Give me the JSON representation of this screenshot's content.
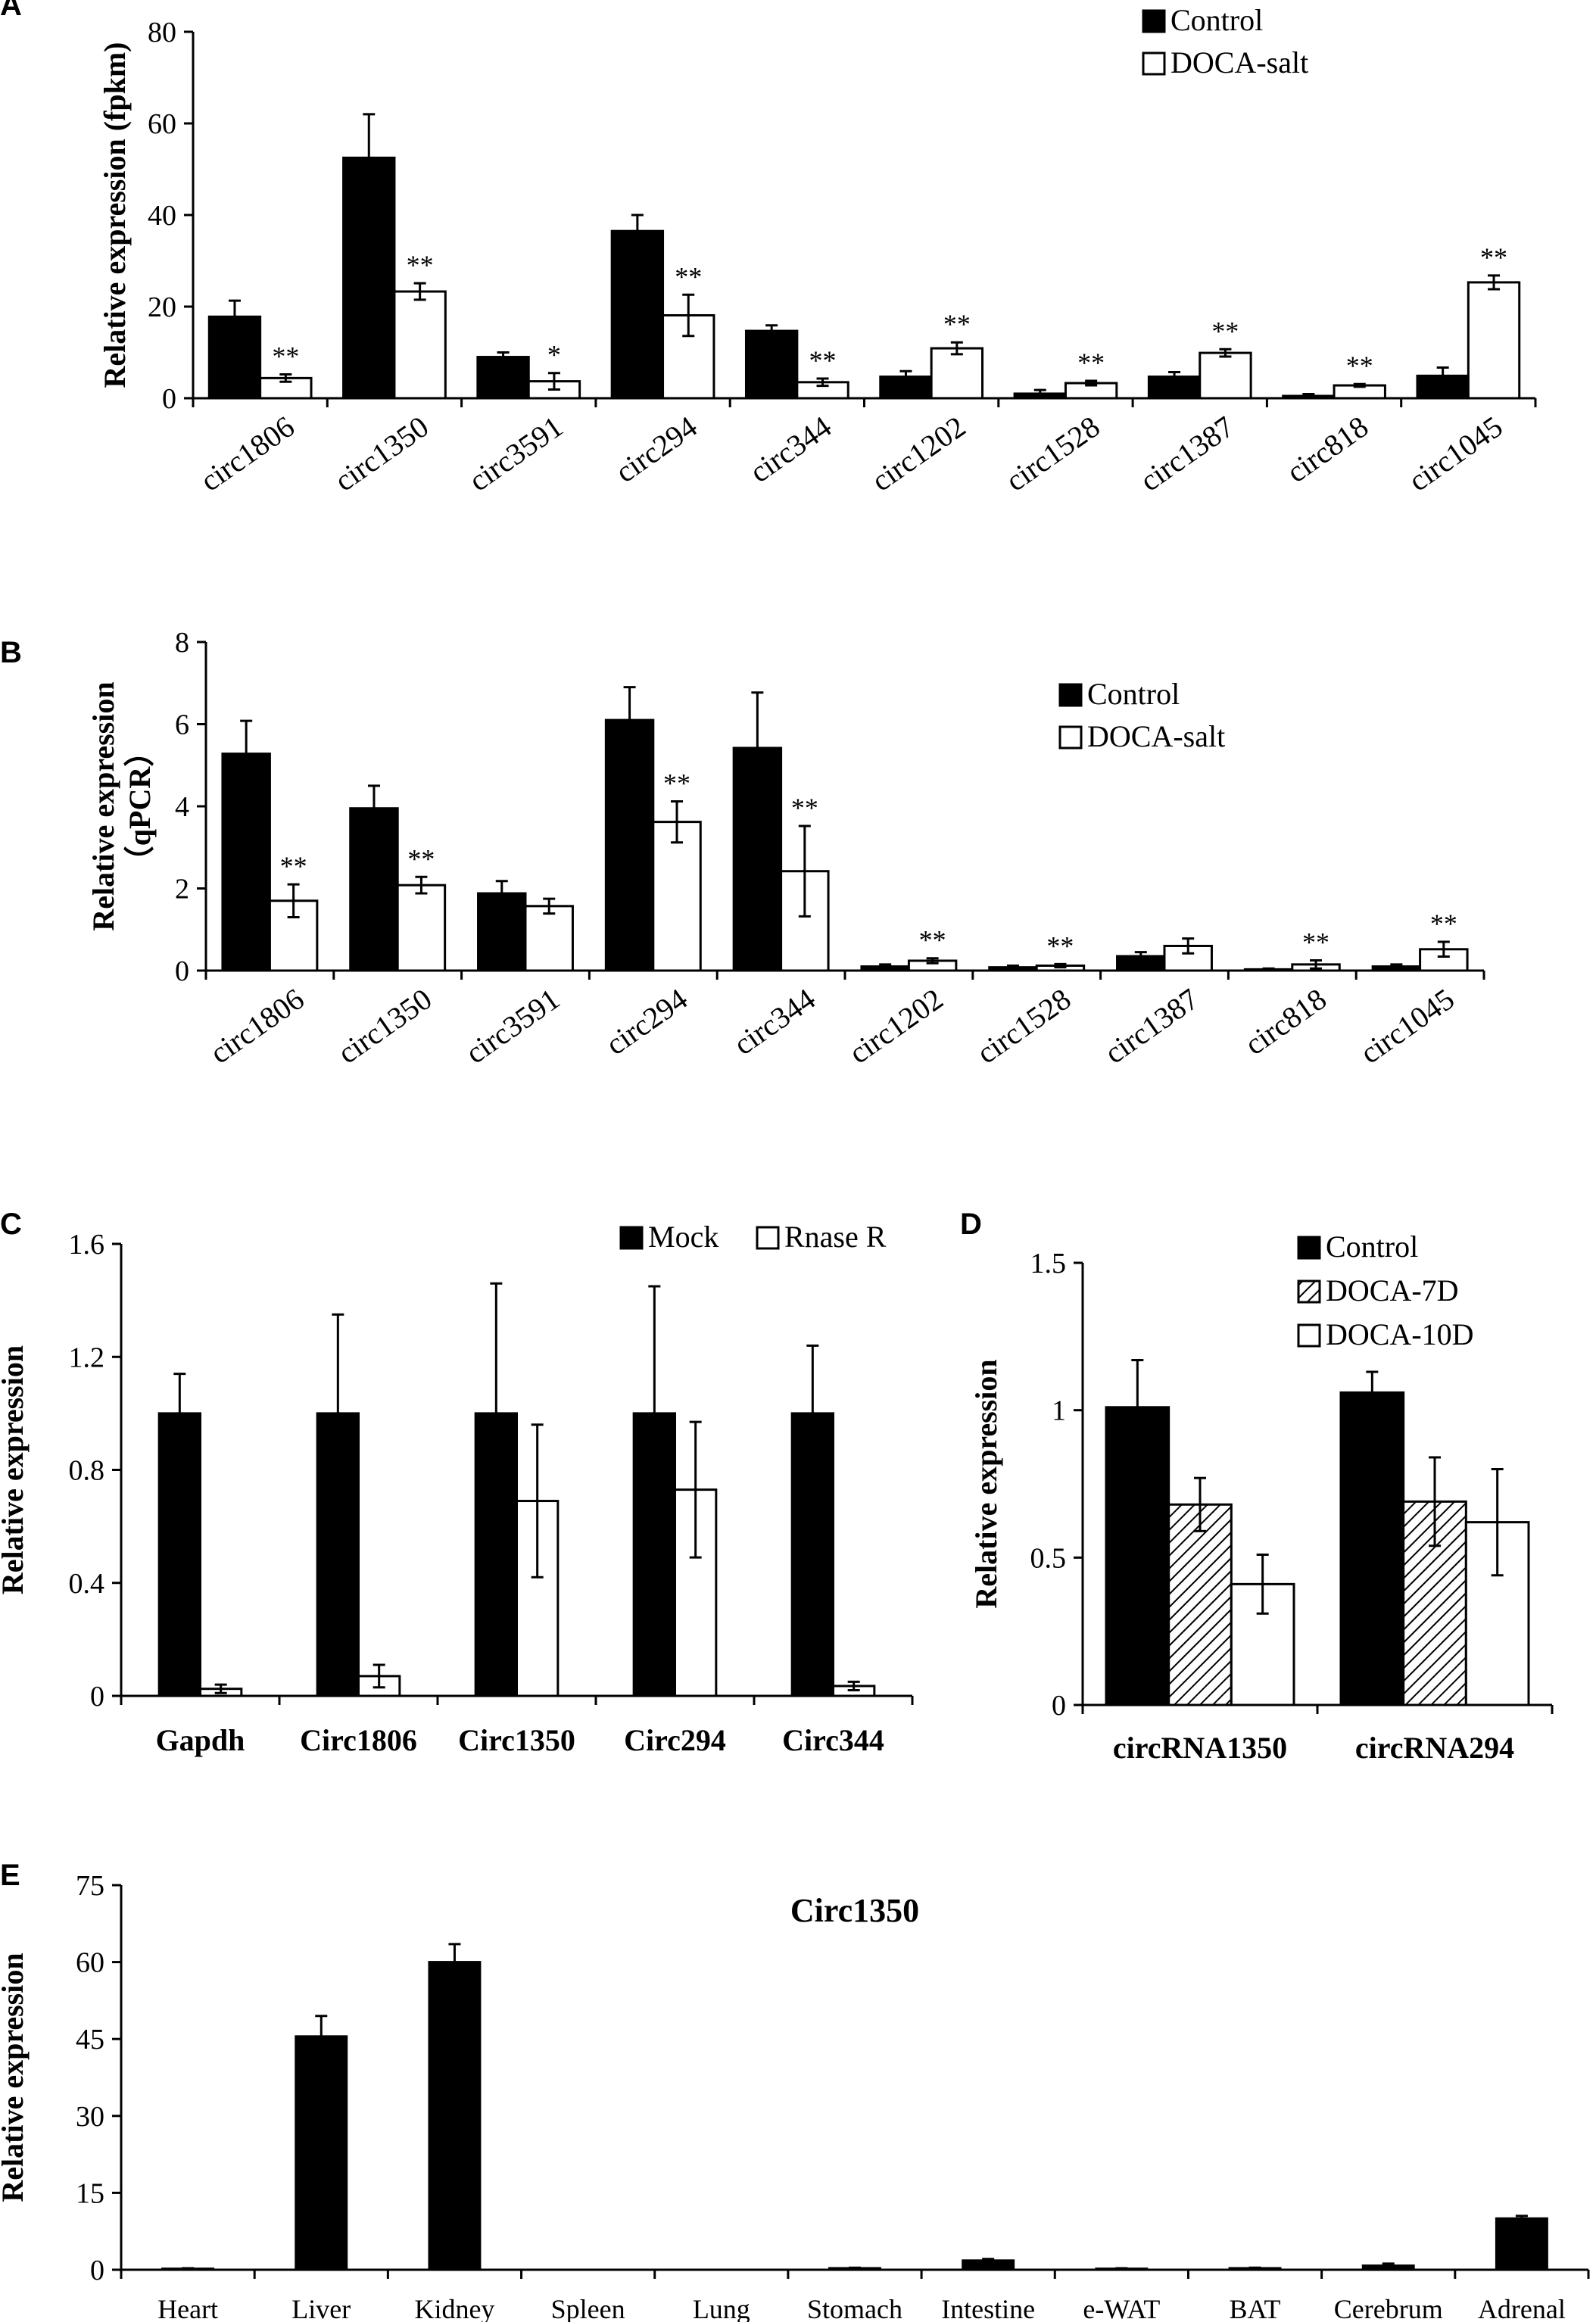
{
  "chart_data": [
    {
      "panel": "A",
      "type": "bar",
      "ylabel": "Relative expression (fpkm)",
      "ylim": [
        0,
        80
      ],
      "yticks": [
        "0",
        "20",
        "40",
        "60",
        "80"
      ],
      "categories": [
        "circ1806",
        "circ1350",
        "circ3591",
        "circ294",
        "circ344",
        "circ1202",
        "circ1528",
        "circ1387",
        "circ818",
        "circ1045"
      ],
      "series": [
        {
          "name": "Control",
          "fill": "black",
          "values": [
            17.8,
            52.5,
            9.0,
            36.5,
            14.7,
            4.7,
            1.0,
            4.7,
            0.5,
            4.9
          ],
          "errors": [
            3.5,
            9.5,
            1.0,
            3.5,
            1.2,
            1.2,
            0.8,
            1.0,
            0.4,
            1.8
          ]
        },
        {
          "name": "DOCA-salt",
          "fill": "white",
          "values": [
            4.4,
            23.3,
            3.7,
            18.1,
            3.5,
            10.9,
            3.3,
            9.9,
            2.8,
            25.3
          ],
          "errors": [
            0.8,
            1.8,
            1.8,
            4.5,
            0.8,
            1.3,
            0.5,
            0.8,
            0.3,
            1.5
          ]
        }
      ],
      "significance": [
        "**",
        "**",
        "*",
        "**",
        "**",
        "**",
        "**",
        "**",
        "**",
        "**"
      ],
      "legend_position": "top-right",
      "grid": false
    },
    {
      "panel": "B",
      "type": "bar",
      "ylabel_lines": [
        "Relative expression",
        "（qPCR）"
      ],
      "ylim": [
        0,
        8
      ],
      "yticks": [
        "0",
        "2",
        "4",
        "6",
        "8"
      ],
      "categories": [
        "circ1806",
        "circ1350",
        "circ3591",
        "circ294",
        "circ344",
        "circ1202",
        "circ1528",
        "circ1387",
        "circ818",
        "circ1045"
      ],
      "series": [
        {
          "name": "Control",
          "fill": "black",
          "values": [
            5.28,
            3.95,
            1.88,
            6.1,
            5.42,
            0.1,
            0.08,
            0.35,
            0.03,
            0.1
          ],
          "errors": [
            0.8,
            0.55,
            0.3,
            0.8,
            1.35,
            0.05,
            0.04,
            0.1,
            0.02,
            0.05
          ]
        },
        {
          "name": "DOCA-salt",
          "fill": "white",
          "values": [
            1.7,
            2.08,
            1.57,
            3.62,
            2.42,
            0.24,
            0.12,
            0.6,
            0.15,
            0.52
          ],
          "errors": [
            0.4,
            0.2,
            0.18,
            0.5,
            1.1,
            0.06,
            0.04,
            0.18,
            0.1,
            0.18
          ]
        }
      ],
      "significance": [
        "**",
        "**",
        "",
        "**",
        "**",
        "**",
        "**",
        "",
        "**",
        "**"
      ],
      "legend_position": "top-right",
      "grid": false
    },
    {
      "panel": "C",
      "type": "bar",
      "ylabel": "Relative expression",
      "ylim": [
        0,
        1.6
      ],
      "yticks": [
        "0",
        "0.4",
        "0.8",
        "1.2",
        "1.6"
      ],
      "categories": [
        "Gapdh",
        "Circ1806",
        "Circ1350",
        "Circ294",
        "Circ344"
      ],
      "series": [
        {
          "name": "Mock",
          "fill": "black",
          "values": [
            1.0,
            1.0,
            1.0,
            1.0,
            1.0
          ],
          "errors": [
            0.14,
            0.35,
            0.46,
            0.45,
            0.24
          ]
        },
        {
          "name": "Rnase R",
          "fill": "white",
          "values": [
            0.025,
            0.07,
            0.69,
            0.73,
            0.035
          ],
          "errors": [
            0.015,
            0.04,
            0.27,
            0.24,
            0.015
          ]
        }
      ],
      "legend_position": "top-right",
      "grid": false
    },
    {
      "panel": "D",
      "type": "bar",
      "ylabel": "Relative expression",
      "ylim": [
        0,
        1.5
      ],
      "yticks": [
        "0",
        "0.5",
        "1",
        "1.5"
      ],
      "categories": [
        "circRNA1350",
        "circRNA294"
      ],
      "series": [
        {
          "name": "Control",
          "fill": "black",
          "values": [
            1.01,
            1.06
          ],
          "errors": [
            0.16,
            0.07
          ]
        },
        {
          "name": "DOCA-7D",
          "fill": "hatched",
          "values": [
            0.68,
            0.69
          ],
          "errors": [
            0.09,
            0.15
          ]
        },
        {
          "name": "DOCA-10D",
          "fill": "white",
          "values": [
            0.41,
            0.62
          ],
          "errors": [
            0.1,
            0.18
          ]
        }
      ],
      "legend_position": "top-left",
      "grid": false
    },
    {
      "panel": "E",
      "type": "bar",
      "title": "Circ1350",
      "ylabel": "Relative expression",
      "ylim": [
        0,
        75
      ],
      "yticks": [
        "0",
        "15",
        "30",
        "45",
        "60",
        "75"
      ],
      "categories": [
        "Heart",
        "Liver",
        "Kidney",
        "Spleen",
        "Lung",
        "Stomach",
        "Intestine",
        "e-WAT",
        "BAT",
        "Cerebrum",
        "Adrenal"
      ],
      "series": [
        {
          "fill": "black",
          "values": [
            0.2,
            45.5,
            60.0,
            0.0,
            0.0,
            0.3,
            1.8,
            0.2,
            0.3,
            0.8,
            10.0
          ],
          "errors": [
            0.1,
            4.0,
            3.5,
            0.0,
            0.0,
            0.1,
            0.3,
            0.1,
            0.1,
            0.4,
            0.5
          ]
        }
      ],
      "grid": false
    }
  ]
}
